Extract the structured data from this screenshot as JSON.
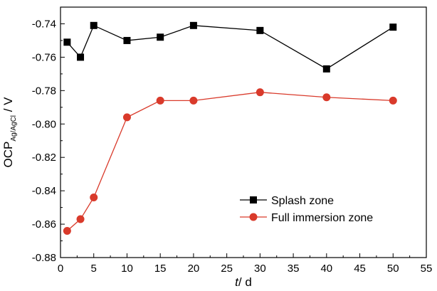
{
  "chart_data": {
    "type": "line",
    "x": [
      1,
      3,
      5,
      10,
      15,
      20,
      30,
      40,
      50
    ],
    "series": [
      {
        "name": "Splash zone",
        "color": "#000000",
        "marker": "square",
        "values": [
          -0.751,
          -0.76,
          -0.741,
          -0.75,
          -0.748,
          -0.741,
          -0.744,
          -0.767,
          -0.742
        ]
      },
      {
        "name": "Full immersion zone",
        "color": "#d93a2b",
        "marker": "circle",
        "values": [
          -0.864,
          -0.857,
          -0.844,
          -0.796,
          -0.786,
          -0.786,
          -0.781,
          -0.784,
          -0.786
        ]
      }
    ],
    "xlim": [
      0,
      55
    ],
    "ylim": [
      -0.88,
      -0.73
    ],
    "xticks": [
      "0",
      "5",
      "10",
      "15",
      "20",
      "25",
      "30",
      "35",
      "40",
      "45",
      "50",
      "55"
    ],
    "yticks": [
      "-0.74",
      "-0.76",
      "-0.78",
      "-0.80",
      "-0.82",
      "-0.84",
      "-0.86",
      "-0.88"
    ],
    "xlabel": {
      "var": "t",
      "unit": "/ d"
    },
    "ylabel": {
      "main": "OCP",
      "sub": "Ag/AgCl",
      "unit": " / V"
    },
    "legend_position": "bottom-right",
    "grid": false
  }
}
